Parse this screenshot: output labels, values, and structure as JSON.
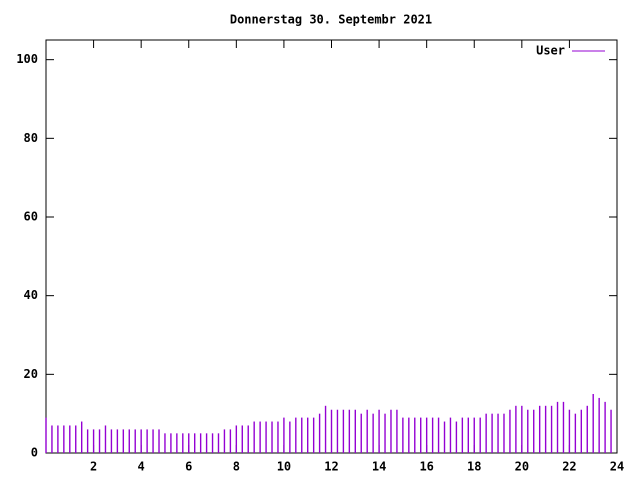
{
  "chart_data": {
    "type": "impulses",
    "title": "Donnerstag 30. Septembr 2021",
    "x": [
      0,
      0.25,
      0.5,
      0.75,
      1,
      1.25,
      1.5,
      1.75,
      2,
      2.25,
      2.5,
      2.75,
      3,
      3.25,
      3.5,
      3.75,
      4,
      4.25,
      4.5,
      4.75,
      5,
      5.25,
      5.5,
      5.75,
      6,
      6.25,
      6.5,
      6.75,
      7,
      7.25,
      7.5,
      7.75,
      8,
      8.25,
      8.5,
      8.75,
      9,
      9.25,
      9.5,
      9.75,
      10,
      10.25,
      10.5,
      10.75,
      11,
      11.25,
      11.5,
      11.75,
      12,
      12.25,
      12.5,
      12.75,
      13,
      13.25,
      13.5,
      13.75,
      14,
      14.25,
      14.5,
      14.75,
      15,
      15.25,
      15.5,
      15.75,
      16,
      16.25,
      16.5,
      16.75,
      17,
      17.25,
      17.5,
      17.75,
      18,
      18.25,
      18.5,
      18.75,
      19,
      19.25,
      19.5,
      19.75,
      20,
      20.25,
      20.5,
      20.75,
      21,
      21.25,
      21.5,
      21.75,
      22,
      22.25,
      22.5,
      22.75,
      23,
      23.25,
      23.5,
      23.75
    ],
    "series": [
      {
        "name": "User",
        "color": "#9400d3",
        "values": [
          9,
          7,
          7,
          7,
          7,
          7,
          8,
          6,
          6,
          6,
          7,
          6,
          6,
          6,
          6,
          6,
          6,
          6,
          6,
          6,
          5,
          5,
          5,
          5,
          5,
          5,
          5,
          5,
          5,
          5,
          6,
          6,
          7,
          7,
          7,
          8,
          8,
          8,
          8,
          8,
          9,
          8,
          9,
          9,
          9,
          9,
          10,
          12,
          11,
          11,
          11,
          11,
          11,
          10,
          11,
          10,
          11,
          10,
          11,
          11,
          9,
          9,
          9,
          9,
          9,
          9,
          9,
          8,
          9,
          8,
          9,
          9,
          9,
          9,
          10,
          10,
          10,
          10,
          11,
          12,
          12,
          11,
          11,
          12,
          12,
          12,
          13,
          13,
          11,
          10,
          11,
          12,
          15,
          14,
          13,
          11
        ]
      }
    ],
    "xlim": [
      0,
      24
    ],
    "xticks": [
      2,
      4,
      6,
      8,
      10,
      12,
      14,
      16,
      18,
      20,
      22,
      24
    ],
    "ylim": [
      0,
      105
    ],
    "yticks": [
      0,
      20,
      40,
      60,
      80,
      100
    ],
    "legend": "top-right"
  }
}
